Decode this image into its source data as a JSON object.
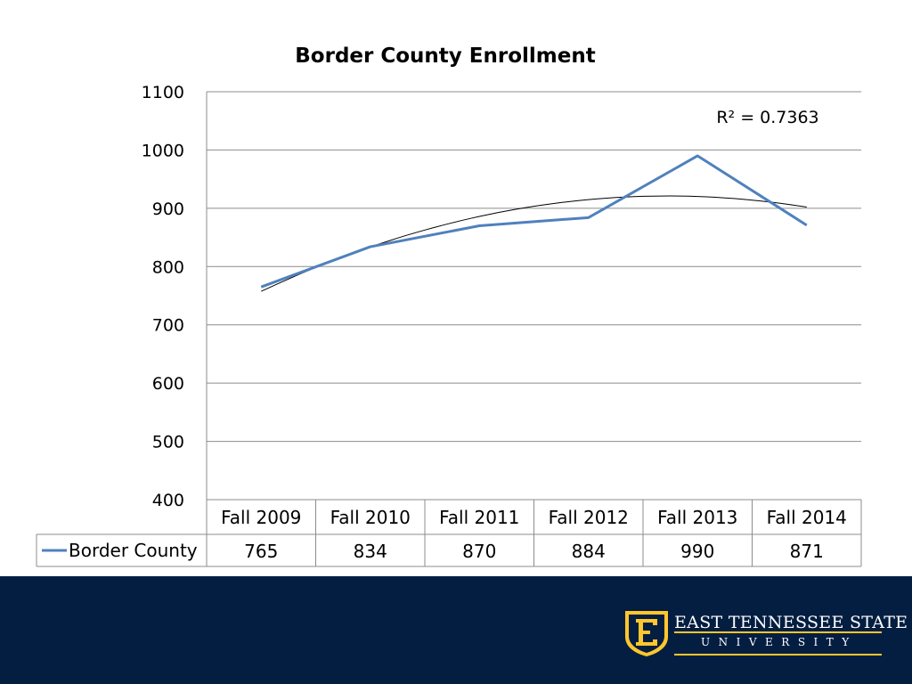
{
  "chart_data": {
    "type": "line",
    "title": "Border County Enrollment",
    "categories": [
      "Fall 2009",
      "Fall 2010",
      "Fall 2011",
      "Fall 2012",
      "Fall 2013",
      "Fall 2014"
    ],
    "series": [
      {
        "name": "Border County",
        "values": [
          765,
          834,
          870,
          884,
          990,
          871
        ],
        "color": "#4f81bd"
      }
    ],
    "trendline": {
      "type": "polynomial-2",
      "r_squared_label": "R² = 0.7363",
      "color": "#000000"
    },
    "ylim": [
      400,
      1100
    ],
    "yticks": [
      400,
      500,
      600,
      700,
      800,
      900,
      1000,
      1100
    ],
    "grid": true,
    "legend": "data-table",
    "xlabel": "",
    "ylabel": ""
  },
  "footer": {
    "background": "#041e42",
    "accent": "#ffc72c",
    "logo_icon": "etsu-shield-e-icon",
    "university_line1": "EAST TENNESSEE STATE",
    "university_line2": "UNIVERSITY"
  }
}
